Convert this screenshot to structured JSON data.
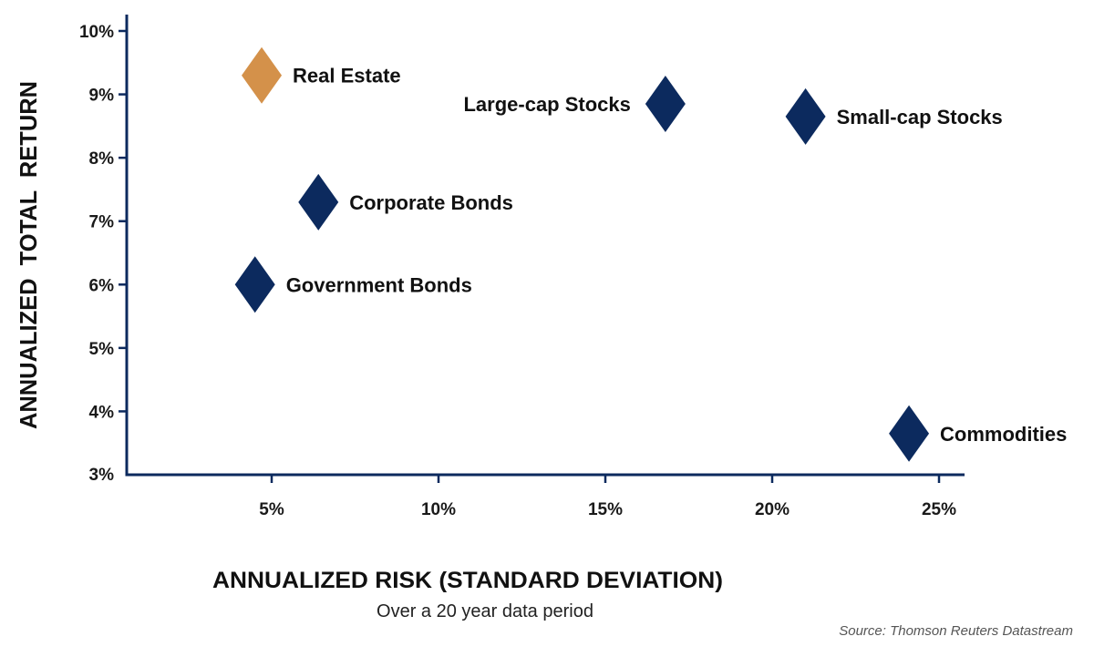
{
  "chart_data": {
    "type": "scatter",
    "title": "",
    "xlabel": "ANNUALIZED RISK (STANDARD DEVIATION)",
    "ylabel": "ANNUALIZED  TOTAL  RETURN",
    "subtitle": "Over a 20 year data period",
    "source": "Source: Thomson Reuters Datastream",
    "xlim": [
      0.5,
      26
    ],
    "ylim": [
      3,
      10.25
    ],
    "x_ticks": [
      {
        "value": 5,
        "label": "5%"
      },
      {
        "value": 10,
        "label": "10%"
      },
      {
        "value": 15,
        "label": "15%"
      },
      {
        "value": 20,
        "label": "20%"
      },
      {
        "value": 25,
        "label": "25%"
      }
    ],
    "y_ticks": [
      {
        "value": 3,
        "label": "3%"
      },
      {
        "value": 4,
        "label": "4%"
      },
      {
        "value": 5,
        "label": "5%"
      },
      {
        "value": 6,
        "label": "6%"
      },
      {
        "value": 7,
        "label": "7%"
      },
      {
        "value": 8,
        "label": "8%"
      },
      {
        "value": 9,
        "label": "9%"
      },
      {
        "value": 10,
        "label": "10%"
      }
    ],
    "grid": false,
    "marker": "diamond",
    "colors": {
      "highlight": "#D4914A",
      "default": "#0C2A5E",
      "axis": "#0C2A5E"
    },
    "points": [
      {
        "label": "Real Estate",
        "x": 4.7,
        "y": 9.3,
        "color": "#D4914A",
        "label_side": "right"
      },
      {
        "label": "Large-cap Stocks",
        "x": 16.8,
        "y": 8.85,
        "color": "#0C2A5E",
        "label_side": "left"
      },
      {
        "label": "Small-cap Stocks",
        "x": 21.0,
        "y": 8.65,
        "color": "#0C2A5E",
        "label_side": "right"
      },
      {
        "label": "Corporate Bonds",
        "x": 6.4,
        "y": 7.3,
        "color": "#0C2A5E",
        "label_side": "right"
      },
      {
        "label": "Government Bonds",
        "x": 4.5,
        "y": 6.0,
        "color": "#0C2A5E",
        "label_side": "right"
      },
      {
        "label": "Commodities",
        "x": 24.1,
        "y": 3.65,
        "color": "#0C2A5E",
        "label_side": "right"
      }
    ]
  }
}
